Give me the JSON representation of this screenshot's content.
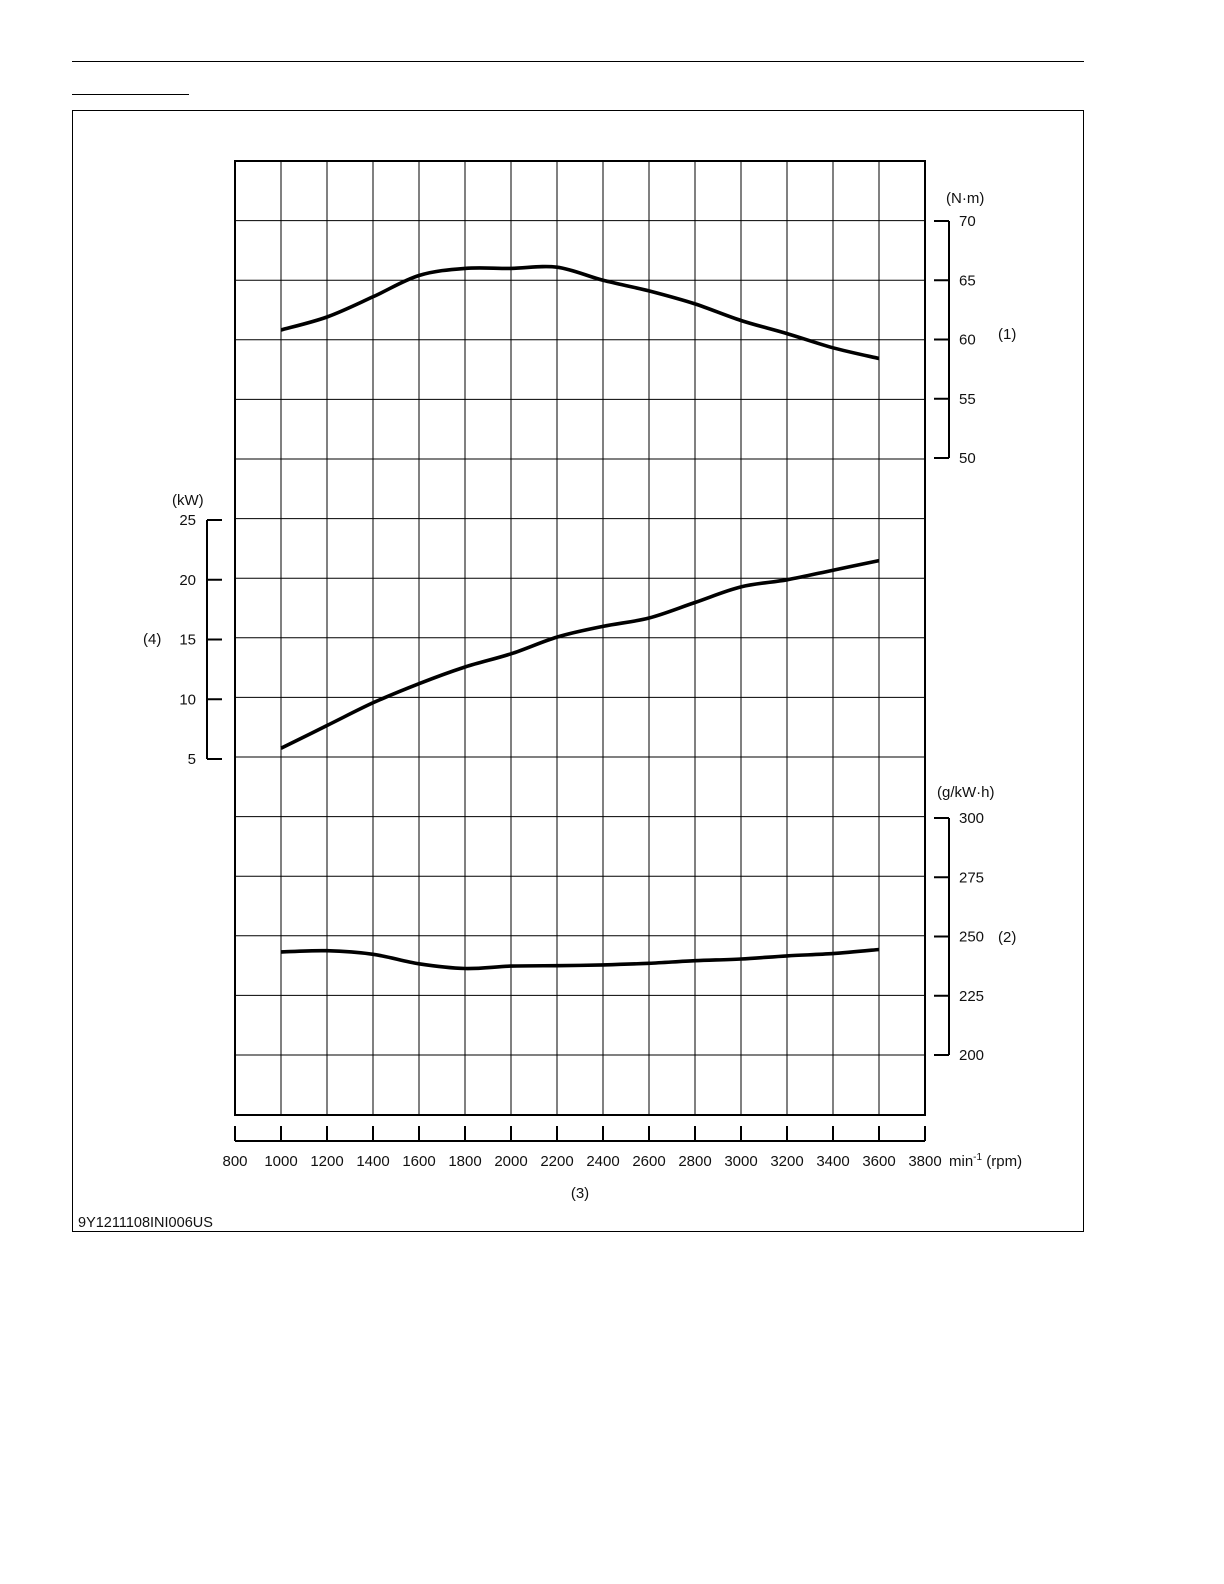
{
  "figure_id": "9Y1211108INI006US",
  "chart_data": {
    "type": "line",
    "x_axis": {
      "range": [
        800,
        3800
      ],
      "ticks": [
        800,
        1000,
        1200,
        1400,
        1600,
        1800,
        2000,
        2200,
        2400,
        2600,
        2800,
        3000,
        3200,
        3400,
        3600,
        3800
      ],
      "unit_main": "min",
      "unit_sup": "-1",
      "unit_suffix": "(rpm)",
      "marker": "(3)"
    },
    "axes": {
      "torque": {
        "unit": "(N·m)",
        "marker": "(1)",
        "side": "right",
        "range": [
          50,
          70
        ],
        "ticks": [
          50,
          55,
          60,
          65,
          70
        ]
      },
      "power": {
        "unit": "(kW)",
        "marker": "(4)",
        "side": "left",
        "range": [
          5,
          25
        ],
        "ticks": [
          5,
          10,
          15,
          20,
          25
        ]
      },
      "fuel": {
        "unit": "(g/kW·h)",
        "marker": "(2)",
        "side": "right",
        "range": [
          200,
          300
        ],
        "ticks": [
          200,
          225,
          250,
          275,
          300
        ]
      }
    },
    "grid": true,
    "series": [
      {
        "axis": "torque",
        "x": [
          1000,
          1200,
          1400,
          1600,
          1800,
          2000,
          2200,
          2400,
          2600,
          2800,
          3000,
          3200,
          3400,
          3600
        ],
        "y": [
          60.8,
          61.9,
          63.6,
          65.4,
          66.0,
          66.0,
          66.1,
          65.0,
          64.1,
          63.0,
          61.6,
          60.5,
          59.3,
          58.4
        ]
      },
      {
        "axis": "power",
        "x": [
          1000,
          1200,
          1400,
          1600,
          1800,
          2000,
          2200,
          2400,
          2600,
          2800,
          3000,
          3200,
          3400,
          3600
        ],
        "y": [
          5.9,
          7.8,
          9.7,
          11.3,
          12.7,
          13.8,
          15.2,
          16.1,
          16.8,
          18.1,
          19.4,
          20.0,
          20.8,
          21.6
        ]
      },
      {
        "axis": "fuel",
        "x": [
          1000,
          1200,
          1400,
          1600,
          1800,
          2000,
          2200,
          2400,
          2600,
          2800,
          3000,
          3200,
          3400,
          3600
        ],
        "y": [
          243.5,
          244.0,
          242.5,
          238.5,
          236.5,
          237.5,
          237.7,
          238.0,
          238.7,
          239.8,
          240.5,
          241.8,
          242.8,
          244.5
        ]
      }
    ]
  }
}
